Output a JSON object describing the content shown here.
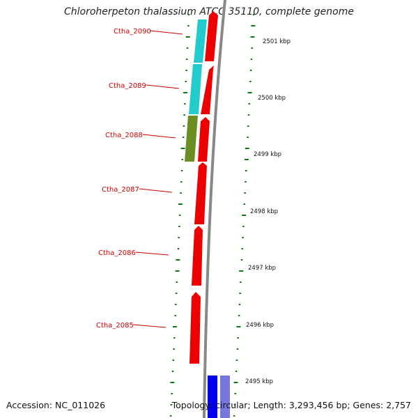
{
  "title": "Chloroherpeton thalassium ATCC 35110, complete genome",
  "footer": {
    "accession": "Accession: NC_011026",
    "topology": "Topology: circular; Length: 3,293,456 bp; Genes: 2,757"
  },
  "colors": {
    "backbone": "#888888",
    "forward_cds": "#ee0000",
    "reverse_cds": "#22cccc",
    "olive_cds": "#6b8e23",
    "blue_cds": "#0000ee",
    "purple_cds": "#7777dd",
    "ticks": "#117711",
    "gene_label": "#cc0000"
  },
  "gene_labels": [
    "Ctha_2090",
    "Ctha_2089",
    "Ctha_2088",
    "Ctha_2087",
    "Ctha_2086",
    "Ctha_2085"
  ],
  "scale_labels": [
    "2501 kbp",
    "2500 kbp",
    "2499 kbp",
    "2498 kbp",
    "2497 kbp",
    "2496 kbp",
    "2495 kbp"
  ]
}
